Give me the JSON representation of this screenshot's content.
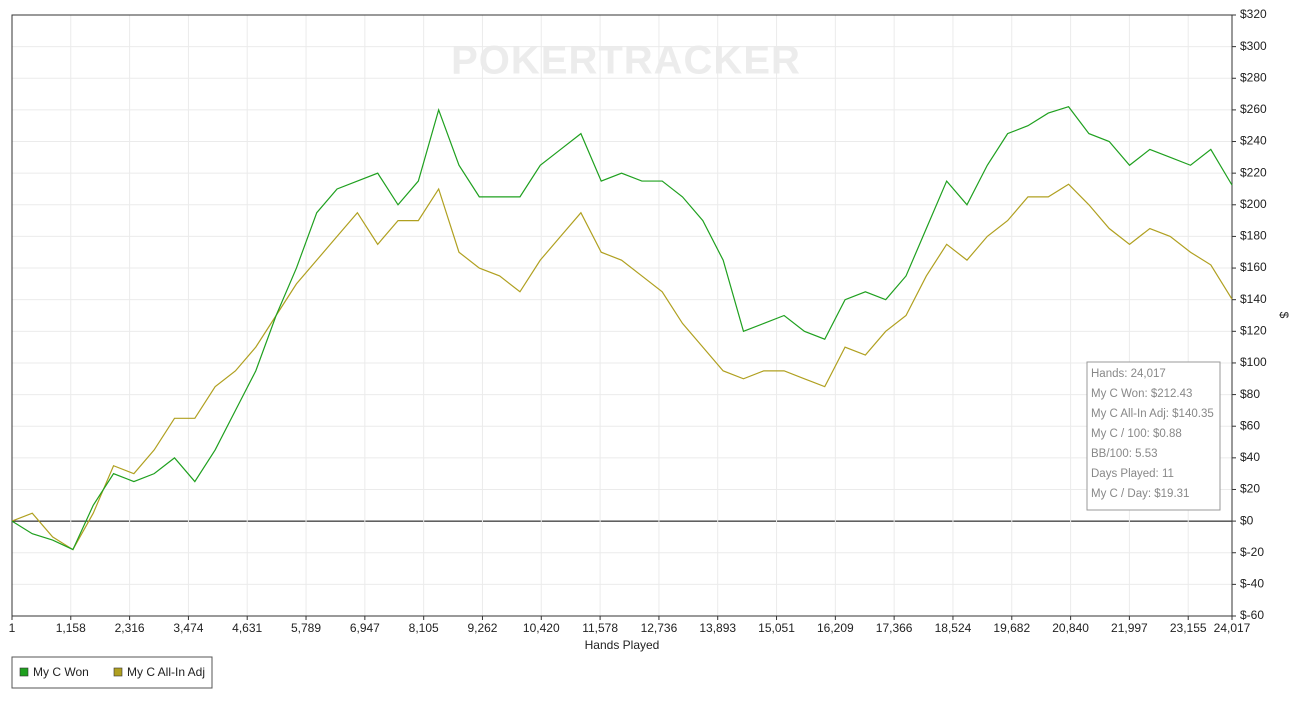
{
  "chart_data": {
    "type": "line",
    "watermark": "POKERTRACKER",
    "x_label": "Hands Played",
    "y_label": "$",
    "x": [
      1,
      400,
      800,
      1200,
      1600,
      2000,
      2400,
      2800,
      3200,
      3600,
      4000,
      4400,
      4800,
      5200,
      5600,
      6000,
      6400,
      6800,
      7200,
      7600,
      8000,
      8400,
      8800,
      9200,
      9600,
      10000,
      10400,
      10800,
      11200,
      11600,
      12000,
      12400,
      12800,
      13200,
      13600,
      14000,
      14400,
      14800,
      15200,
      15600,
      16000,
      16400,
      16800,
      17200,
      17600,
      18000,
      18400,
      18800,
      19200,
      19600,
      20000,
      20400,
      20800,
      21200,
      21600,
      22000,
      22400,
      22800,
      23200,
      23600,
      24017
    ],
    "series": [
      {
        "name": "My C Won",
        "color": "#1fa01f",
        "values": [
          0,
          -8,
          -12,
          -18,
          10,
          30,
          25,
          30,
          40,
          25,
          45,
          70,
          95,
          130,
          160,
          195,
          210,
          215,
          220,
          200,
          215,
          260,
          225,
          205,
          205,
          205,
          225,
          235,
          245,
          215,
          220,
          215,
          215,
          205,
          190,
          165,
          120,
          125,
          130,
          120,
          115,
          140,
          145,
          140,
          155,
          185,
          215,
          200,
          225,
          245,
          250,
          258,
          262,
          245,
          240,
          225,
          235,
          230,
          225,
          235,
          212.43
        ]
      },
      {
        "name": "My C All-In Adj",
        "color": "#b0a020",
        "values": [
          0,
          5,
          -10,
          -18,
          5,
          35,
          30,
          45,
          65,
          65,
          85,
          95,
          110,
          130,
          150,
          165,
          180,
          195,
          175,
          190,
          190,
          210,
          170,
          160,
          155,
          145,
          165,
          180,
          195,
          170,
          165,
          155,
          145,
          125,
          110,
          95,
          90,
          95,
          95,
          90,
          85,
          110,
          105,
          120,
          130,
          155,
          175,
          165,
          180,
          190,
          205,
          205,
          213,
          200,
          185,
          175,
          185,
          180,
          170,
          162,
          140.35
        ]
      }
    ],
    "xlim": [
      1,
      24017
    ],
    "xticks": [
      1,
      {
        "value": 1158,
        "label": "1,158"
      },
      {
        "value": 2316,
        "label": "2,316"
      },
      {
        "value": 3474,
        "label": "3,474"
      },
      {
        "value": 4631,
        "label": "4,631"
      },
      {
        "value": 5789,
        "label": "5,789"
      },
      {
        "value": 6947,
        "label": "6,947"
      },
      {
        "value": 8105,
        "label": "8,105"
      },
      {
        "value": 9262,
        "label": "9,262"
      },
      {
        "value": 10420,
        "label": "10,420"
      },
      {
        "value": 11578,
        "label": "11,578"
      },
      {
        "value": 12736,
        "label": "12,736"
      },
      {
        "value": 13893,
        "label": "13,893"
      },
      {
        "value": 15051,
        "label": "15,051"
      },
      {
        "value": 16209,
        "label": "16,209"
      },
      {
        "value": 17366,
        "label": "17,366"
      },
      {
        "value": 18524,
        "label": "18,524"
      },
      {
        "value": 19682,
        "label": "19,682"
      },
      {
        "value": 20840,
        "label": "20,840"
      },
      {
        "value": 21997,
        "label": "21,997"
      },
      {
        "value": 23155,
        "label": "23,155"
      },
      {
        "value": 24017,
        "label": "24,017"
      }
    ],
    "ylim": [
      -60,
      320
    ],
    "yticks": [
      {
        "value": -60,
        "label": "$-60"
      },
      {
        "value": -40,
        "label": "$-40"
      },
      {
        "value": -20,
        "label": "$-20"
      },
      {
        "value": 0,
        "label": "$0"
      },
      {
        "value": 20,
        "label": "$20"
      },
      {
        "value": 40,
        "label": "$40"
      },
      {
        "value": 60,
        "label": "$60"
      },
      {
        "value": 80,
        "label": "$80"
      },
      {
        "value": 100,
        "label": "$100"
      },
      {
        "value": 120,
        "label": "$120"
      },
      {
        "value": 140,
        "label": "$140"
      },
      {
        "value": 160,
        "label": "$160"
      },
      {
        "value": 180,
        "label": "$180"
      },
      {
        "value": 200,
        "label": "$200"
      },
      {
        "value": 220,
        "label": "$220"
      },
      {
        "value": 240,
        "label": "$240"
      },
      {
        "value": 260,
        "label": "$260"
      },
      {
        "value": 280,
        "label": "$280"
      },
      {
        "value": 300,
        "label": "$300"
      },
      {
        "value": 320,
        "label": "$320"
      }
    ],
    "grid": true,
    "stats": [
      "Hands: 24,017",
      "My C Won: $212.43",
      "My C All-In Adj: $140.35",
      "My C / 100: $0.88",
      "BB/100: 5.53",
      "Days Played: 11",
      "My C / Day: $19.31"
    ]
  }
}
